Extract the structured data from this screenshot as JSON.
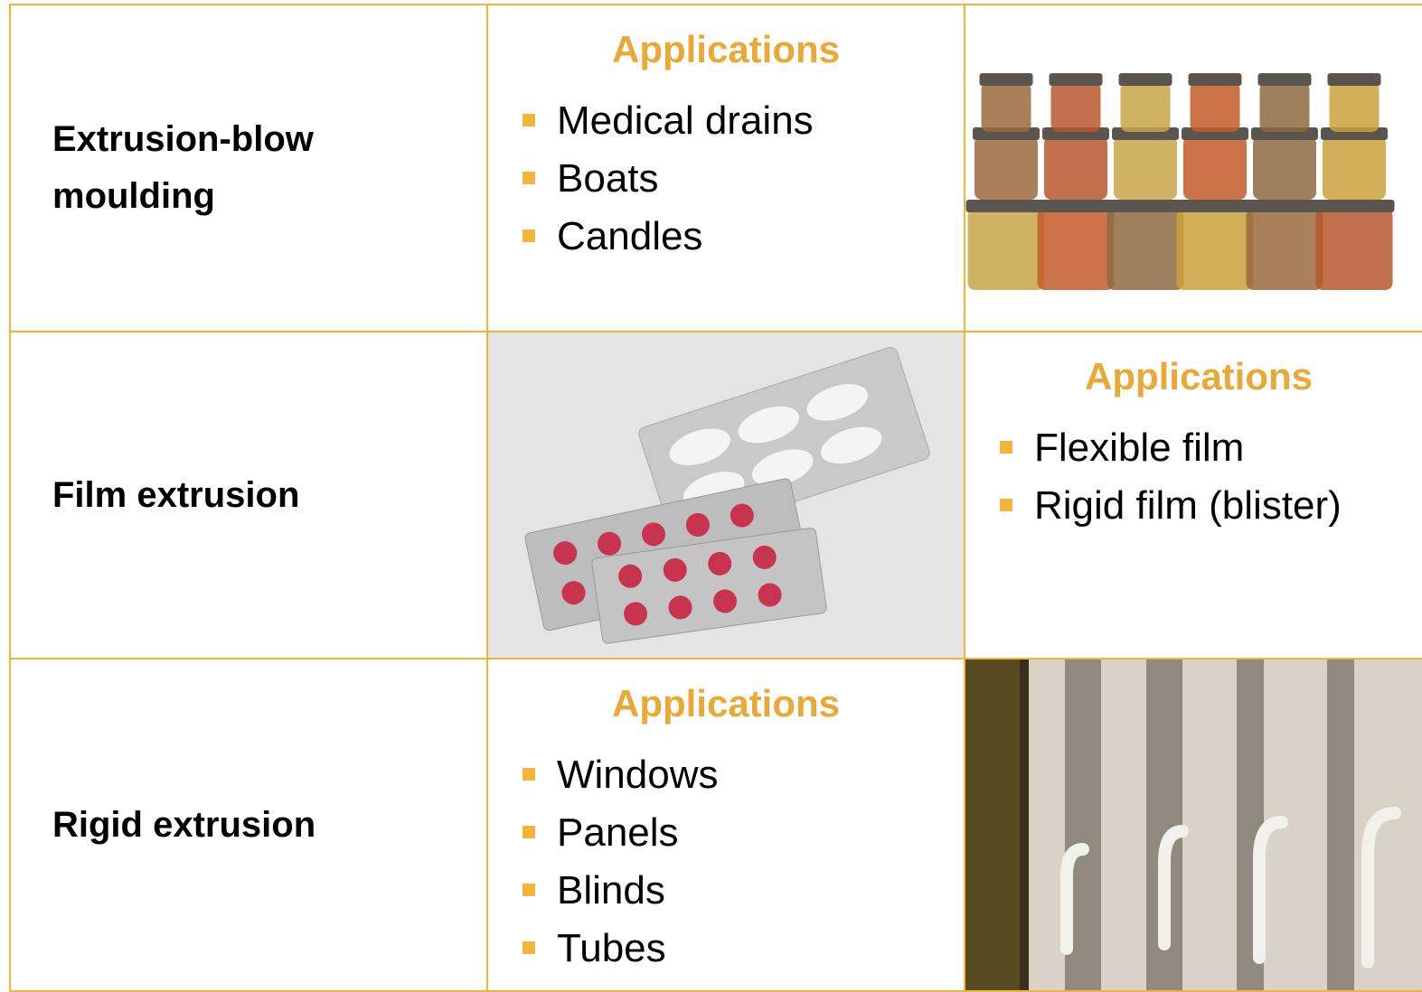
{
  "rows": [
    {
      "process": "Extrusion-blow moulding",
      "applications": {
        "heading": "Applications",
        "items": [
          "Medical drains",
          "Boats",
          "Candles"
        ]
      }
    },
    {
      "process": "Film extrusion",
      "applications": {
        "heading": "Applications",
        "items": [
          "Flexible film",
          "Rigid film (blister)"
        ]
      }
    },
    {
      "process": "Rigid extrusion",
      "applications": {
        "heading": "Applications",
        "items": [
          "Windows",
          "Panels",
          "Blinds",
          "Tubes"
        ]
      }
    }
  ]
}
